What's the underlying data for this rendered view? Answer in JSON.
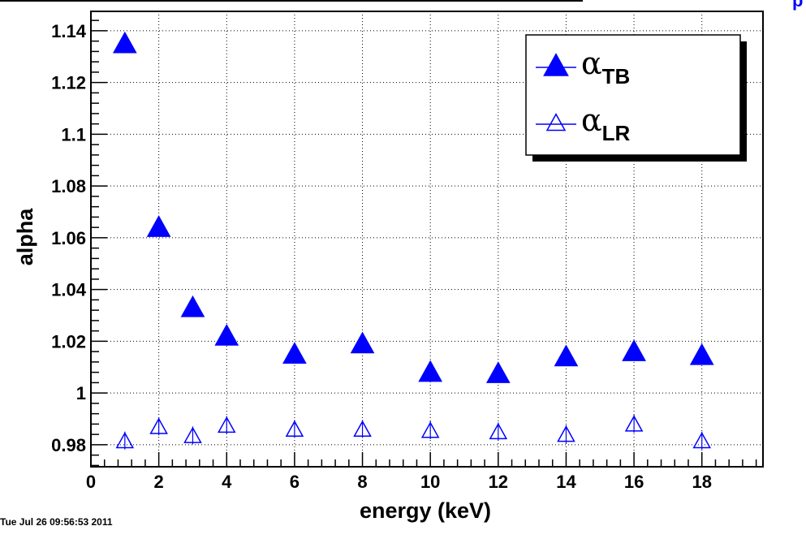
{
  "timestamp": "Tue Jul 26 09:56:53 2011",
  "chart_data": {
    "type": "scatter",
    "title": "",
    "xlabel": "energy (keV)",
    "ylabel": "alpha",
    "xlim": [
      0,
      19.8
    ],
    "ylim": [
      0.9715,
      1.1475
    ],
    "xticks": [
      0,
      2,
      4,
      6,
      8,
      10,
      12,
      14,
      16,
      18
    ],
    "yticks": [
      0.98,
      1,
      1.02,
      1.04,
      1.06,
      1.08,
      1.1,
      1.12,
      1.14
    ],
    "ytick_labels": [
      "0.98",
      "1",
      "1.02",
      "1.04",
      "1.06",
      "1.08",
      "1.1",
      "1.12",
      "1.14"
    ],
    "grid": true,
    "legend_position": "top-right",
    "colors": {
      "series": "#0000ff",
      "axis": "#000000",
      "grid": "#000000"
    },
    "series": [
      {
        "name": "α_TB",
        "legend_symbol": "α",
        "legend_subscript": "TB",
        "marker": "filled-triangle",
        "x": [
          1,
          2,
          3,
          4,
          6,
          8,
          10,
          12,
          14,
          16,
          18
        ],
        "y": [
          1.1345,
          1.0635,
          1.0325,
          1.0215,
          1.0145,
          1.0185,
          1.0075,
          1.007,
          1.0135,
          1.0155,
          1.014
        ]
      },
      {
        "name": "α_LR",
        "legend_symbol": "α",
        "legend_subscript": "LR",
        "marker": "open-triangle",
        "x": [
          1,
          2,
          3,
          4,
          6,
          8,
          10,
          12,
          14,
          16,
          18
        ],
        "y": [
          0.981,
          0.9865,
          0.983,
          0.987,
          0.9855,
          0.9855,
          0.985,
          0.9845,
          0.9835,
          0.9875,
          0.981
        ]
      }
    ]
  }
}
